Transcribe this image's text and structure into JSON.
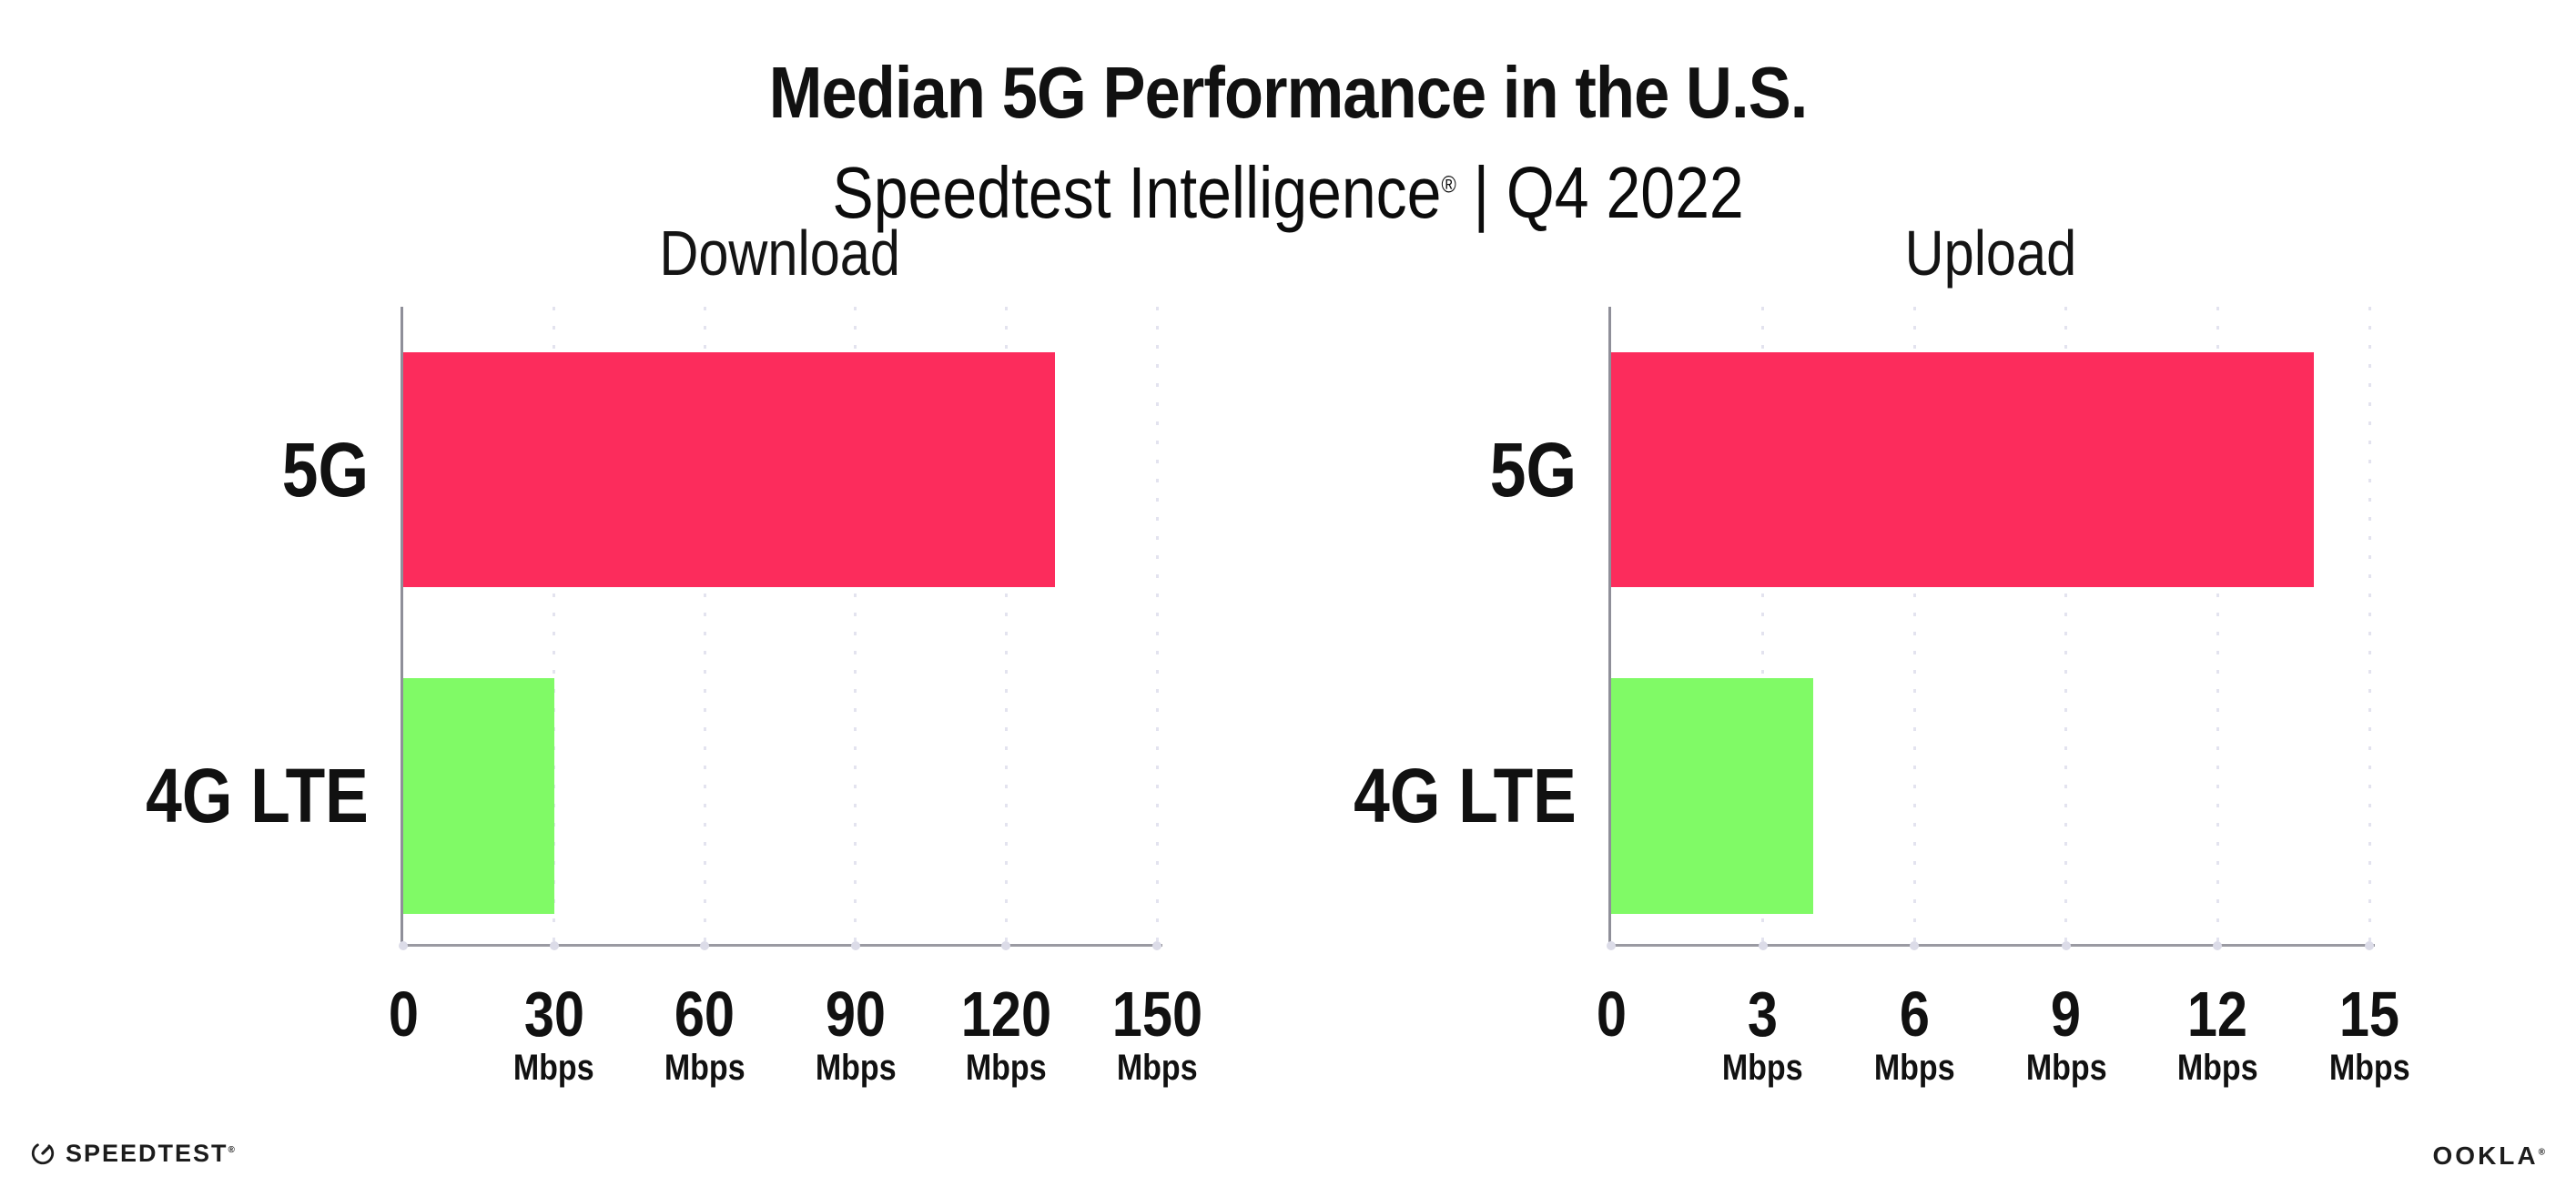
{
  "header": {
    "title": "Median 5G Performance in the U.S.",
    "subtitle_brand": "Speedtest Intelligence",
    "subtitle_reg": "®",
    "subtitle_sep": "|",
    "subtitle_period": "Q4 2022"
  },
  "colors": {
    "bar_5g": "#FC2C5C",
    "bar_4g": "#80FA66",
    "axis_line": "#9a9aa2",
    "grid_dot": "#e3e3ef",
    "axis_dot": "#dcdce8",
    "text": "#111111"
  },
  "chart_data": [
    {
      "type": "bar",
      "orientation": "horizontal",
      "title": "Download",
      "categories": [
        "5G",
        "4G LTE"
      ],
      "values": [
        129.7,
        30
      ],
      "unit": "Mbps",
      "xlim": [
        0,
        150
      ],
      "xticks": [
        0,
        30,
        60,
        90,
        120,
        150
      ],
      "bar_colors": [
        "#FC2C5C",
        "#80FA66"
      ],
      "grid": "dotted-vertical",
      "legend": "none"
    },
    {
      "type": "bar",
      "orientation": "horizontal",
      "title": "Upload",
      "categories": [
        "5G",
        "4G LTE"
      ],
      "values": [
        13.9,
        4
      ],
      "unit": "Mbps",
      "xlim": [
        0,
        15
      ],
      "xticks": [
        0,
        3,
        6,
        9,
        12,
        15
      ],
      "bar_colors": [
        "#FC2C5C",
        "#80FA66"
      ],
      "grid": "dotted-vertical",
      "legend": "none"
    }
  ],
  "footer": {
    "speedtest_label": "SPEEDTEST",
    "speedtest_reg": "®",
    "ookla_label": "OOKLA",
    "ookla_reg": "®"
  }
}
